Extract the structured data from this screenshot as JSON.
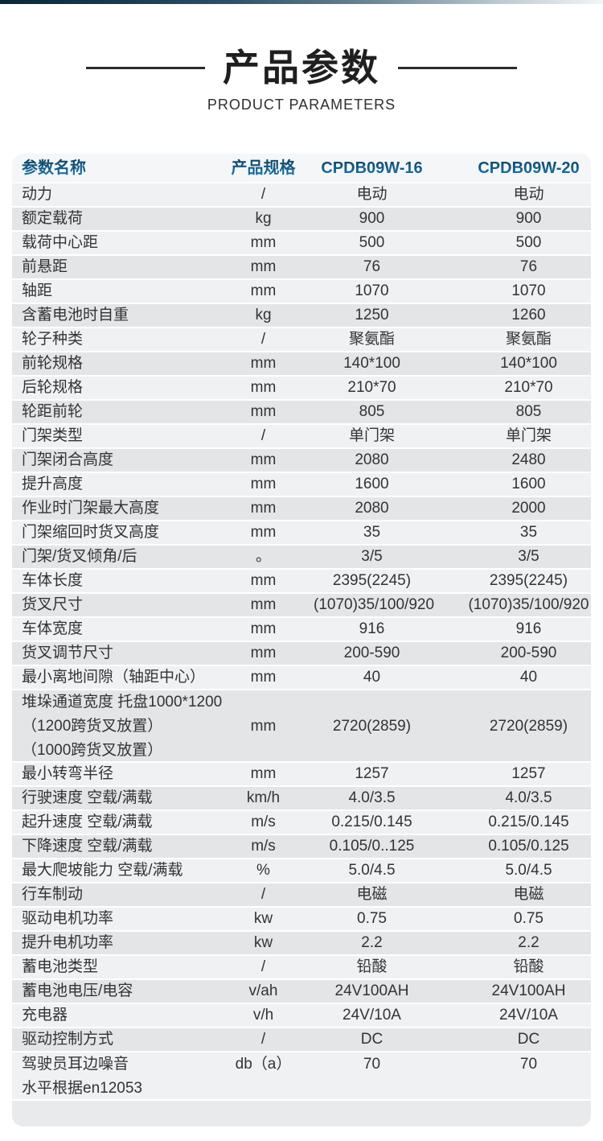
{
  "page": {
    "title": "产品参数",
    "subtitle": "PRODUCT PARAMETERS"
  },
  "colors": {
    "header_text_blue_top": "#123a52",
    "header_text_blue_bottom": "#1c85b6",
    "top_bar_navy": "#0a2737",
    "row_light": "#f0f1f3",
    "row_dark": "#e4e5e7",
    "table_bg": "#e9eaeb"
  },
  "table": {
    "headers": [
      "参数名称",
      "产品规格",
      "CPDB09W-16",
      "CPDB09W-20"
    ],
    "rows": [
      {
        "name": "动力",
        "unit": "/",
        "v1": "电动",
        "v2": "电动"
      },
      {
        "name": "额定载荷",
        "unit": "kg",
        "v1": "900",
        "v2": "900"
      },
      {
        "name": "载荷中心距",
        "unit": "mm",
        "v1": "500",
        "v2": "500"
      },
      {
        "name": "前悬距",
        "unit": "mm",
        "v1": "76",
        "v2": "76"
      },
      {
        "name": "轴距",
        "unit": "mm",
        "v1": "1070",
        "v2": "1070"
      },
      {
        "name": "含蓄电池时自重",
        "unit": "kg",
        "v1": "1250",
        "v2": "1260"
      },
      {
        "name": "轮子种类",
        "unit": "/",
        "v1": "聚氨酯",
        "v2": "聚氨酯"
      },
      {
        "name": "前轮规格",
        "unit": "mm",
        "v1": "140*100",
        "v2": "140*100"
      },
      {
        "name": "后轮规格",
        "unit": "mm",
        "v1": "210*70",
        "v2": "210*70"
      },
      {
        "name": "轮距前轮",
        "unit": "mm",
        "v1": "805",
        "v2": "805"
      },
      {
        "name": "门架类型",
        "unit": "/",
        "v1": "单门架",
        "v2": "单门架"
      },
      {
        "name": "门架闭合高度",
        "unit": "mm",
        "v1": "2080",
        "v2": "2480"
      },
      {
        "name": "提升高度",
        "unit": "mm",
        "v1": "1600",
        "v2": "1600"
      },
      {
        "name": "作业时门架最大高度",
        "unit": "mm",
        "v1": "2080",
        "v2": "2000"
      },
      {
        "name": "门架缩回时货叉高度",
        "unit": "mm",
        "v1": "35",
        "v2": "35"
      },
      {
        "name": "门架/货叉倾角/后",
        "unit": "。",
        "v1": "3/5",
        "v2": "3/5"
      },
      {
        "name": "车体长度",
        "unit": "mm",
        "v1": "2395(2245)",
        "v2": "2395(2245)"
      },
      {
        "name": "货叉尺寸",
        "unit": "mm",
        "v1": "(1070)35/100/920",
        "v2": "(1070)35/100/920"
      },
      {
        "name": "车体宽度",
        "unit": "mm",
        "v1": "916",
        "v2": "916"
      },
      {
        "name": "货叉调节尺寸",
        "unit": "mm",
        "v1": "200-590",
        "v2": "200-590"
      },
      {
        "name": "最小离地间隙（轴距中心）",
        "unit": "mm",
        "v1": "40",
        "v2": "40"
      },
      {
        "name": [
          "堆垛通道宽度 托盘1000*1200",
          "（1200跨货叉放置）",
          "（1000跨货叉放置）"
        ],
        "unit": "mm",
        "v1": "2720(2859)",
        "v2": "2720(2859)"
      },
      {
        "name": "最小转弯半径",
        "unit": "mm",
        "v1": "1257",
        "v2": "1257"
      },
      {
        "name": "行驶速度 空载/满载",
        "unit": "km/h",
        "v1": "4.0/3.5",
        "v2": "4.0/3.5"
      },
      {
        "name": "起升速度 空载/满载",
        "unit": "m/s",
        "v1": "0.215/0.145",
        "v2": "0.215/0.145"
      },
      {
        "name": "下降速度 空载/满载",
        "unit": "m/s",
        "v1": "0.105/0..125",
        "v2": "0.105/0.125"
      },
      {
        "name": "最大爬坡能力 空载/满载",
        "unit": "%",
        "v1": "5.0/4.5",
        "v2": "5.0/4.5"
      },
      {
        "name": "行车制动",
        "unit": "/",
        "v1": "电磁",
        "v2": "电磁"
      },
      {
        "name": "驱动电机功率",
        "unit": "kw",
        "v1": "0.75",
        "v2": "0.75"
      },
      {
        "name": "提升电机功率",
        "unit": "kw",
        "v1": "2.2",
        "v2": "2.2"
      },
      {
        "name": "蓄电池类型",
        "unit": "/",
        "v1": "铅酸",
        "v2": "铅酸"
      },
      {
        "name": "蓄电池电压/电容",
        "unit": "v/ah",
        "v1": "24V100AH",
        "v2": "24V100AH"
      },
      {
        "name": "充电器",
        "unit": "v/h",
        "v1": "24V/10A",
        "v2": "24V/10A"
      },
      {
        "name": "驱动控制方式",
        "unit": "/",
        "v1": "DC",
        "v2": "DC"
      },
      {
        "name": [
          "驾驶员耳边噪音",
          "水平根据en12053"
        ],
        "unit": "db（a）",
        "v1": "70",
        "v2": "70"
      }
    ]
  }
}
